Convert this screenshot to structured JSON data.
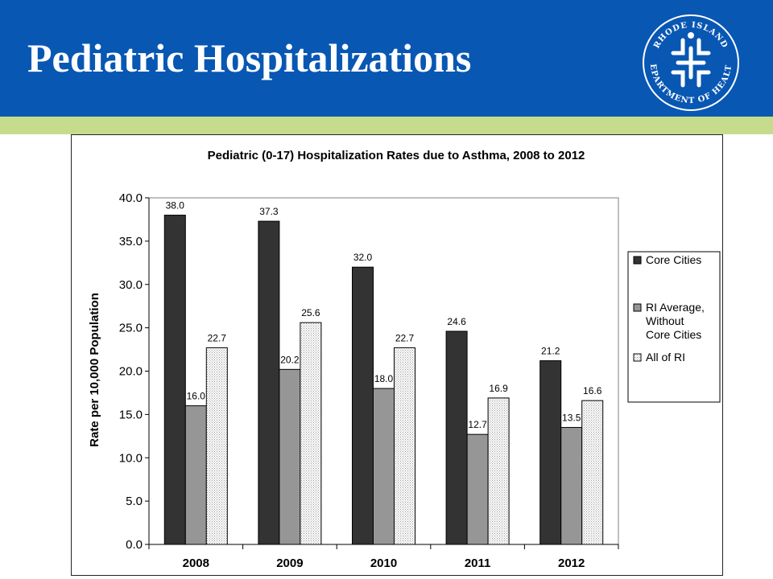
{
  "header": {
    "title": "Pediatric Hospitalizations",
    "logo_text": "RHODE ISLAND DEPARTMENT OF HEALTH",
    "colors": {
      "banner": "#0857b3",
      "band": "#c6dc8c"
    }
  },
  "chart_data": {
    "type": "bar",
    "title": "Pediatric (0-17) Hospitalization Rates due to Asthma, 2008 to 2012",
    "xlabel": "",
    "ylabel": "Rate per 10,000 Population",
    "categories": [
      "2008",
      "2009",
      "2010",
      "2011",
      "2012"
    ],
    "ylim": [
      0,
      40
    ],
    "yticks": [
      "0.0",
      "5.0",
      "10.0",
      "15.0",
      "20.0",
      "25.0",
      "30.0",
      "35.0",
      "40.0"
    ],
    "grid": false,
    "legend_position": "right",
    "series": [
      {
        "name": "Core Cities",
        "values": [
          38.0,
          37.3,
          32.0,
          24.6,
          21.2
        ],
        "labels": [
          "38.0",
          "37.3",
          "32.0",
          "24.6",
          "21.2"
        ],
        "color": "#333333"
      },
      {
        "name": "RI Average, Without Core Cities",
        "values": [
          16.0,
          20.2,
          18.0,
          12.7,
          13.5
        ],
        "labels": [
          "16.0",
          "20.2",
          "18.0",
          "12.7",
          "13.5"
        ],
        "color": "#969696"
      },
      {
        "name": "All of RI",
        "values": [
          22.7,
          25.6,
          22.7,
          16.9,
          16.6
        ],
        "labels": [
          "22.7",
          "25.6",
          "22.7",
          "16.9",
          "16.6"
        ],
        "color": "#e6e6e6"
      }
    ],
    "legend_lines": [
      [
        "Core Cities"
      ],
      [
        "RI Average,",
        "Without",
        "Core Cities"
      ],
      [
        "All of RI"
      ]
    ]
  }
}
